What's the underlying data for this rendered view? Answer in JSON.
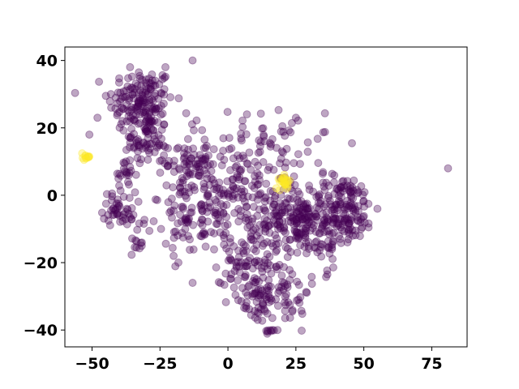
{
  "chart_data": {
    "type": "scatter",
    "title": "",
    "xlabel": "",
    "ylabel": "",
    "xlim": [
      -60,
      88
    ],
    "ylim": [
      -45,
      44
    ],
    "xticks": [
      -50,
      -25,
      0,
      25,
      50,
      75
    ],
    "yticks": [
      -40,
      -20,
      0,
      20,
      40
    ],
    "xtick_labels": [
      "−50",
      "−25",
      "0",
      "25",
      "50",
      "75"
    ],
    "ytick_labels": [
      "−40",
      "−20",
      "0",
      "20",
      "40"
    ],
    "grid": false,
    "marker_alpha": 0.35,
    "series": [
      {
        "color": "#440154",
        "clusters": [
          {
            "center": [
              -32,
              28
            ],
            "spread": [
              6,
              5
            ],
            "count": 160
          },
          {
            "center": [
              -30,
              16
            ],
            "spread": [
              4,
              4
            ],
            "count": 70
          },
          {
            "center": [
              -15,
              10
            ],
            "spread": [
              4,
              4
            ],
            "count": 60
          },
          {
            "center": [
              -38,
              6
            ],
            "spread": [
              2,
              2
            ],
            "count": 20
          },
          {
            "center": [
              -40,
              -4
            ],
            "spread": [
              3,
              2.5
            ],
            "count": 45
          },
          {
            "center": [
              -33,
              -15
            ],
            "spread": [
              1.5,
              1.5
            ],
            "count": 10
          },
          {
            "center": [
              -10,
              -6
            ],
            "spread": [
              10,
              6
            ],
            "count": 140
          },
          {
            "center": [
              5,
              8
            ],
            "spread": [
              10,
              8
            ],
            "count": 120
          },
          {
            "center": [
              15,
              -10
            ],
            "spread": [
              8,
              7
            ],
            "count": 120
          },
          {
            "center": [
              5,
              -20
            ],
            "spread": [
              4,
              3
            ],
            "count": 40
          },
          {
            "center": [
              10,
              -30
            ],
            "spread": [
              5,
              4
            ],
            "count": 70
          },
          {
            "center": [
              22,
              -28
            ],
            "spread": [
              4,
              6
            ],
            "count": 45
          },
          {
            "center": [
              16,
              -40
            ],
            "spread": [
              1.2,
              1
            ],
            "count": 8
          },
          {
            "center": [
              26,
              -8
            ],
            "spread": [
              4,
              4
            ],
            "count": 90
          },
          {
            "center": [
              42,
              -4
            ],
            "spread": [
              6,
              5
            ],
            "count": 180
          },
          {
            "center": [
              35,
              -15
            ],
            "spread": [
              4,
              4
            ],
            "count": 30
          },
          {
            "center": [
              20,
              12
            ],
            "spread": [
              8,
              8
            ],
            "count": 40
          }
        ],
        "points": [
          [
            81,
            8
          ],
          [
            -48,
            23
          ],
          [
            -51,
            18
          ],
          [
            -13,
            -26
          ],
          [
            25,
            23
          ],
          [
            -20,
            -18
          ],
          [
            -13,
            40
          ],
          [
            44,
            -14
          ],
          [
            -23,
            38
          ],
          [
            55,
            -4
          ],
          [
            -36,
            38
          ]
        ]
      },
      {
        "color": "#fde725",
        "clusters": [
          {
            "center": [
              -52,
              11.5
            ],
            "spread": [
              0.8,
              0.6
            ],
            "count": 12
          },
          {
            "center": [
              21,
              4
            ],
            "spread": [
              1,
              0.9
            ],
            "count": 22
          }
        ],
        "points": [
          [
            19,
            1.5
          ],
          [
            22,
            2.5
          ]
        ]
      }
    ]
  }
}
